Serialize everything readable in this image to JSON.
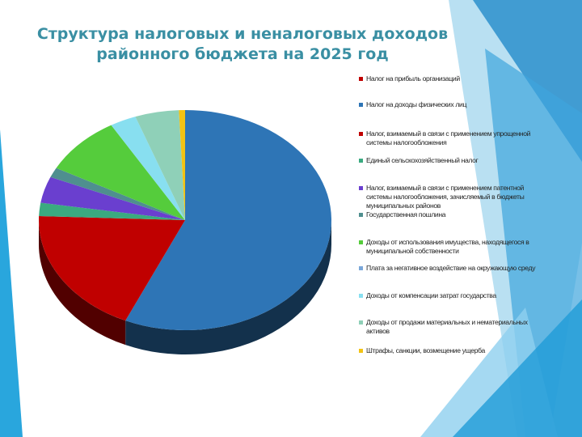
{
  "title_lines": [
    "Структура налоговых и неналоговых доходов",
    "районного бюджета на 2025 год"
  ],
  "chart_data": {
    "type": "pie",
    "title": "Структура налоговых и неналоговых доходов районного бюджета на 2025 год",
    "legend_position": "right",
    "series": [
      {
        "name": "Налог на прибыль организаций",
        "value": 0.0,
        "color": "#c00000"
      },
      {
        "name": "Налог на доходы физических лиц",
        "value": 58.5,
        "color": "#2e75b6"
      },
      {
        "name": "Налог, взимаемый в связи с применением упрощенной системы налогообложения",
        "value": 19.5,
        "color": "#c00000"
      },
      {
        "name": "Единый сельскохозяйственный налог",
        "value": 2.0,
        "color": "#3aaa80"
      },
      {
        "name": "Налог, взимаемый в связи с применением патентной системы налогообложения, зачисляемый в бюджеты муниципальных районов",
        "value": 4.0,
        "color": "#6a3fcf"
      },
      {
        "name": "Государственная пошлина",
        "value": 1.5,
        "color": "#4f8f8f"
      },
      {
        "name": "Доходы от использования имущества, находящегося в муниципальной собственности",
        "value": 9.0,
        "color": "#55cc3c"
      },
      {
        "name": "Плата за негативное воздействие на окружающую среду",
        "value": 0.0,
        "color": "#7aa7d9"
      },
      {
        "name": "Доходы от компенсации затрат государства",
        "value": 3.0,
        "color": "#88dff0"
      },
      {
        "name": "Доходы от продажи материальных и нематериальных активов",
        "value": 5.0,
        "color": "#8fd0b8"
      },
      {
        "name": "Штрафы, санкции, возмещение ущерба",
        "value": 0.7,
        "color": "#f2c314"
      }
    ]
  }
}
